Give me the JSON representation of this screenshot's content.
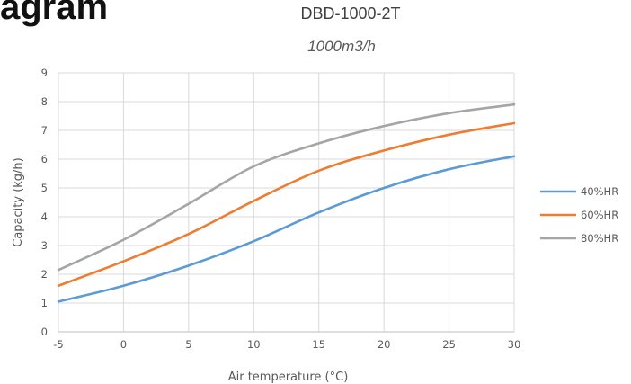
{
  "header": {
    "partial_text": "agram"
  },
  "chart_data": {
    "type": "line",
    "title": "DBD-1000-2T",
    "subtitle": "1000m3/h",
    "xlabel": "Air temperature (°C)",
    "ylabel": "Capacity (kg/h)",
    "xlim": [
      -5,
      30
    ],
    "ylim": [
      0,
      9
    ],
    "xticks": [
      -5,
      0,
      5,
      10,
      15,
      20,
      25,
      30
    ],
    "yticks": [
      0,
      1,
      2,
      3,
      4,
      5,
      6,
      7,
      8,
      9
    ],
    "grid": true,
    "legend_position": "right",
    "x": [
      -5,
      0,
      5,
      10,
      15,
      20,
      25,
      30
    ],
    "series": [
      {
        "name": "40%HR",
        "color": "#5B9BD5",
        "values": [
          1.05,
          1.6,
          2.3,
          3.15,
          4.15,
          5.0,
          5.65,
          6.1
        ]
      },
      {
        "name": "60%HR",
        "color": "#ED7D31",
        "values": [
          1.6,
          2.45,
          3.4,
          4.55,
          5.6,
          6.3,
          6.85,
          7.25
        ]
      },
      {
        "name": "80%HR",
        "color": "#A5A5A5",
        "values": [
          2.15,
          3.2,
          4.45,
          5.75,
          6.55,
          7.15,
          7.6,
          7.9
        ]
      }
    ]
  }
}
